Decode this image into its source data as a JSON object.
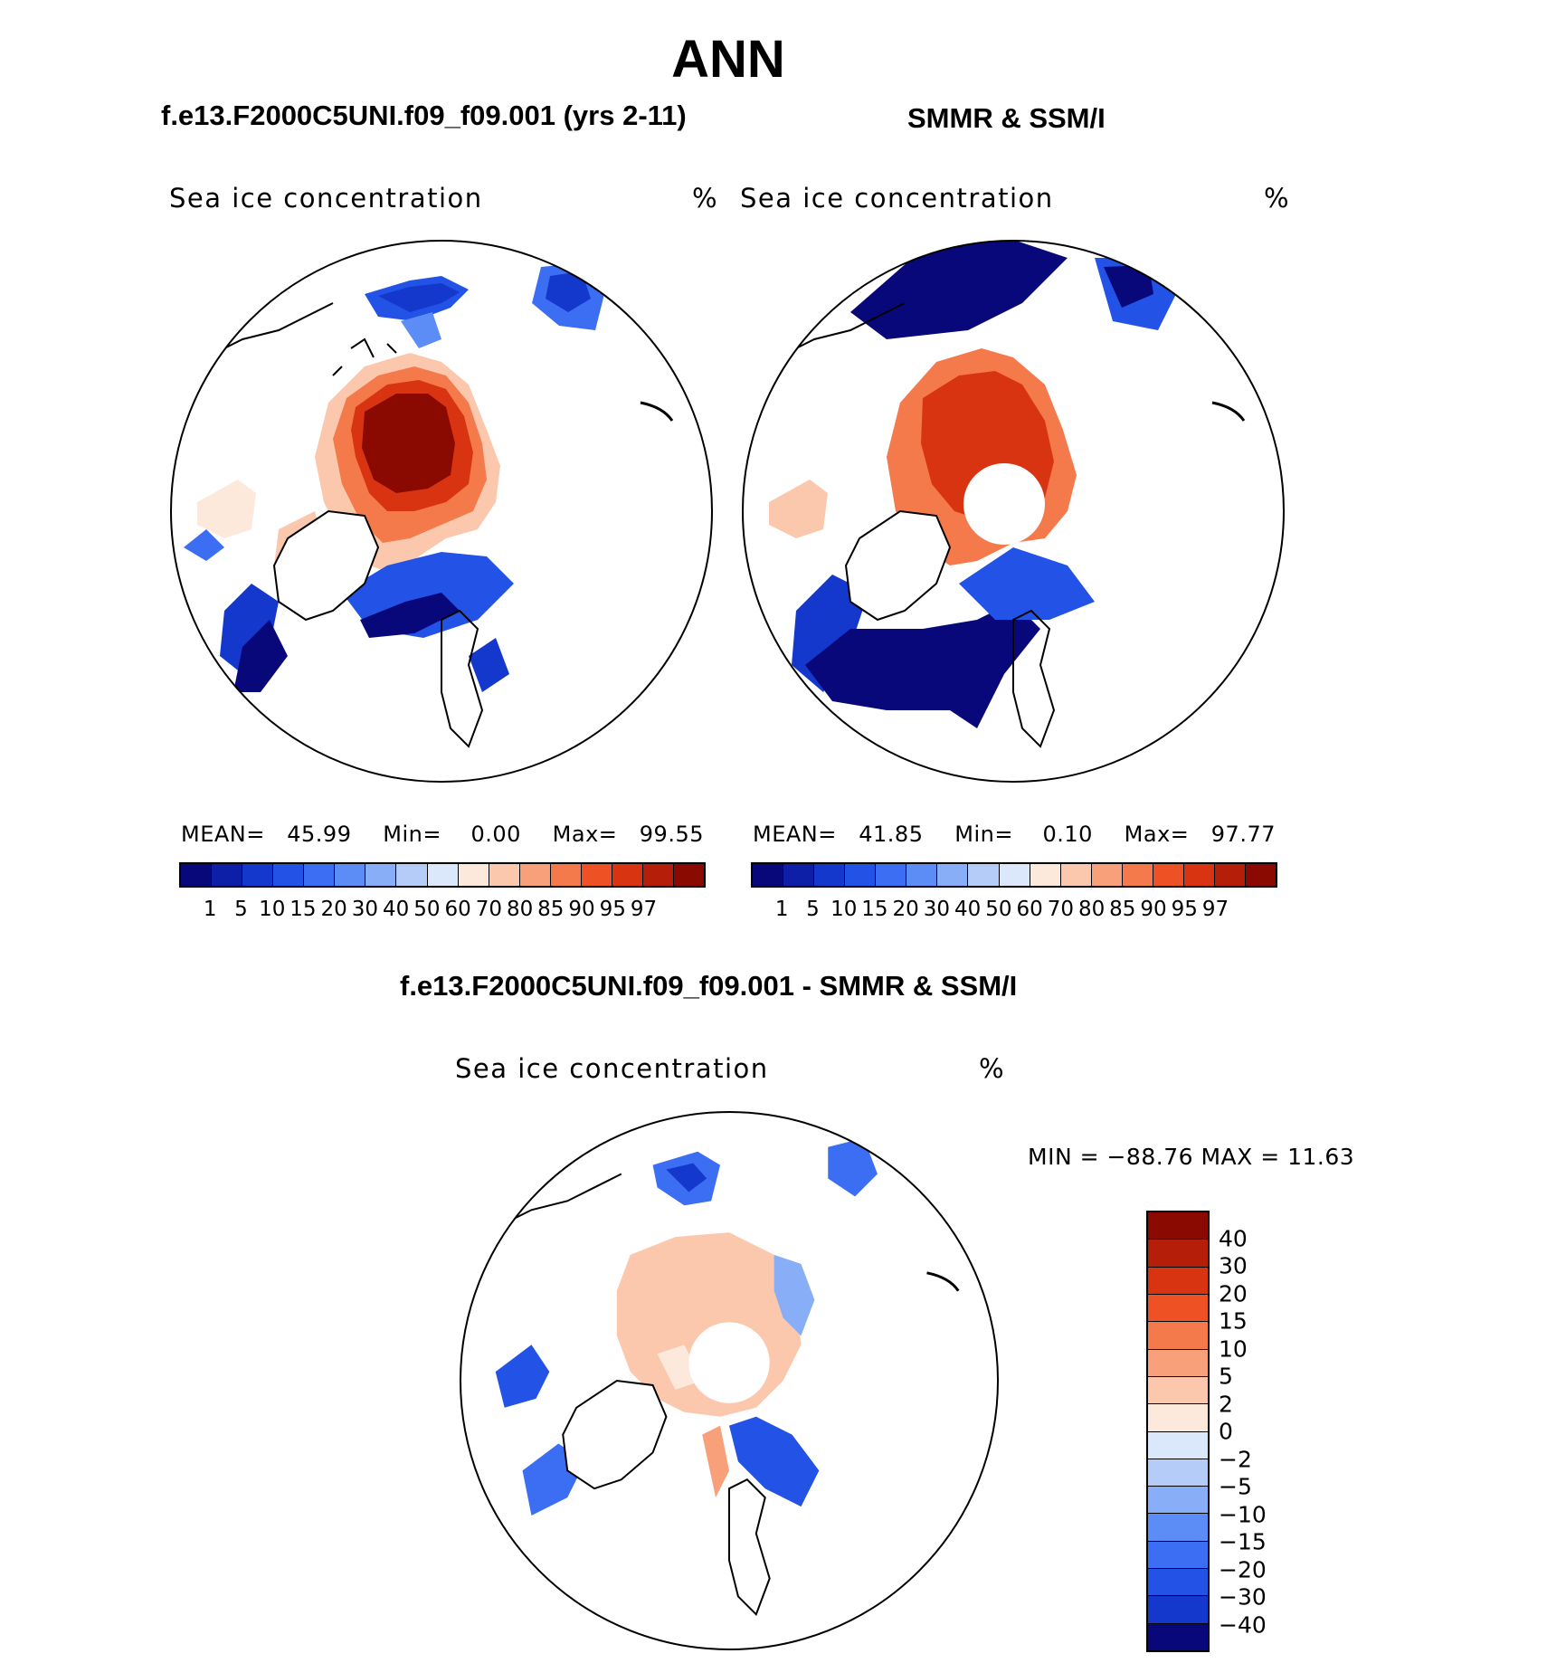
{
  "figure": {
    "title": "ANN",
    "left_subtitle": "f.e13.F2000C5UNI.f09_f09.001 (yrs 2-11)",
    "right_subtitle": "SMMR & SSM/I",
    "diff_subtitle": "f.e13.F2000C5UNI.f09_f09.001 - SMMR & SSM/I"
  },
  "left_plot": {
    "label": "Sea ice concentration",
    "units": "%",
    "mean_label": "MEAN=",
    "mean": "45.99",
    "min_label": "Min=",
    "min": "0.00",
    "max_label": "Max=",
    "max": "99.55"
  },
  "right_plot": {
    "label": "Sea ice concentration",
    "units": "%",
    "mean_label": "MEAN=",
    "mean": "41.85",
    "min_label": "Min=",
    "min": "0.10",
    "max_label": "Max=",
    "max": "97.77"
  },
  "diff_plot": {
    "label": "Sea ice concentration",
    "units": "%",
    "minmax_text": "MIN = −88.76 MAX =   11.63"
  },
  "colorbar_top": {
    "ticks": [
      "1",
      "5",
      "10",
      "15",
      "20",
      "30",
      "40",
      "50",
      "60",
      "70",
      "80",
      "85",
      "90",
      "95",
      "97"
    ],
    "colors": [
      "#08087a",
      "#0c1fa6",
      "#1437cc",
      "#2352e6",
      "#3b6ef2",
      "#5c8cf5",
      "#88aef7",
      "#b6ccf8",
      "#dbe8fb",
      "#fde8dc",
      "#fbc8ad",
      "#f8a07a",
      "#f47a4c",
      "#ee5224",
      "#d93412",
      "#b51e08",
      "#8a0a02"
    ]
  },
  "colorbar_diff": {
    "ticks": [
      "40",
      "30",
      "20",
      "15",
      "10",
      "5",
      "2",
      "0",
      "−2",
      "−5",
      "−10",
      "−15",
      "−20",
      "−30",
      "−40"
    ],
    "colors": [
      "#8a0a02",
      "#b51e08",
      "#d93412",
      "#ee5224",
      "#f47a4c",
      "#f8a07a",
      "#fbc8ad",
      "#fde8dc",
      "#dbe8fb",
      "#b6ccf8",
      "#88aef7",
      "#5c8cf5",
      "#3b6ef2",
      "#2352e6",
      "#1437cc",
      "#08087a"
    ]
  },
  "chart_data": [
    {
      "type": "heatmap",
      "title": "f.e13.F2000C5UNI.f09_f09.001 (yrs 2-11)",
      "variable": "Sea ice concentration",
      "units": "%",
      "projection": "north polar stereographic",
      "mean": 45.99,
      "min": 0.0,
      "max": 99.55,
      "levels": [
        1,
        5,
        10,
        15,
        20,
        30,
        40,
        50,
        60,
        70,
        80,
        85,
        90,
        95,
        97
      ]
    },
    {
      "type": "heatmap",
      "title": "SMMR & SSM/I",
      "variable": "Sea ice concentration",
      "units": "%",
      "projection": "north polar stereographic",
      "mean": 41.85,
      "min": 0.1,
      "max": 97.77,
      "levels": [
        1,
        5,
        10,
        15,
        20,
        30,
        40,
        50,
        60,
        70,
        80,
        85,
        90,
        95,
        97
      ]
    },
    {
      "type": "heatmap",
      "title": "f.e13.F2000C5UNI.f09_f09.001 - SMMR & SSM/I",
      "variable": "Sea ice concentration",
      "units": "%",
      "projection": "north polar stereographic",
      "min": -88.76,
      "max": 11.63,
      "levels": [
        -40,
        -30,
        -20,
        -15,
        -10,
        -5,
        -2,
        0,
        2,
        5,
        10,
        15,
        20,
        30,
        40
      ]
    }
  ]
}
